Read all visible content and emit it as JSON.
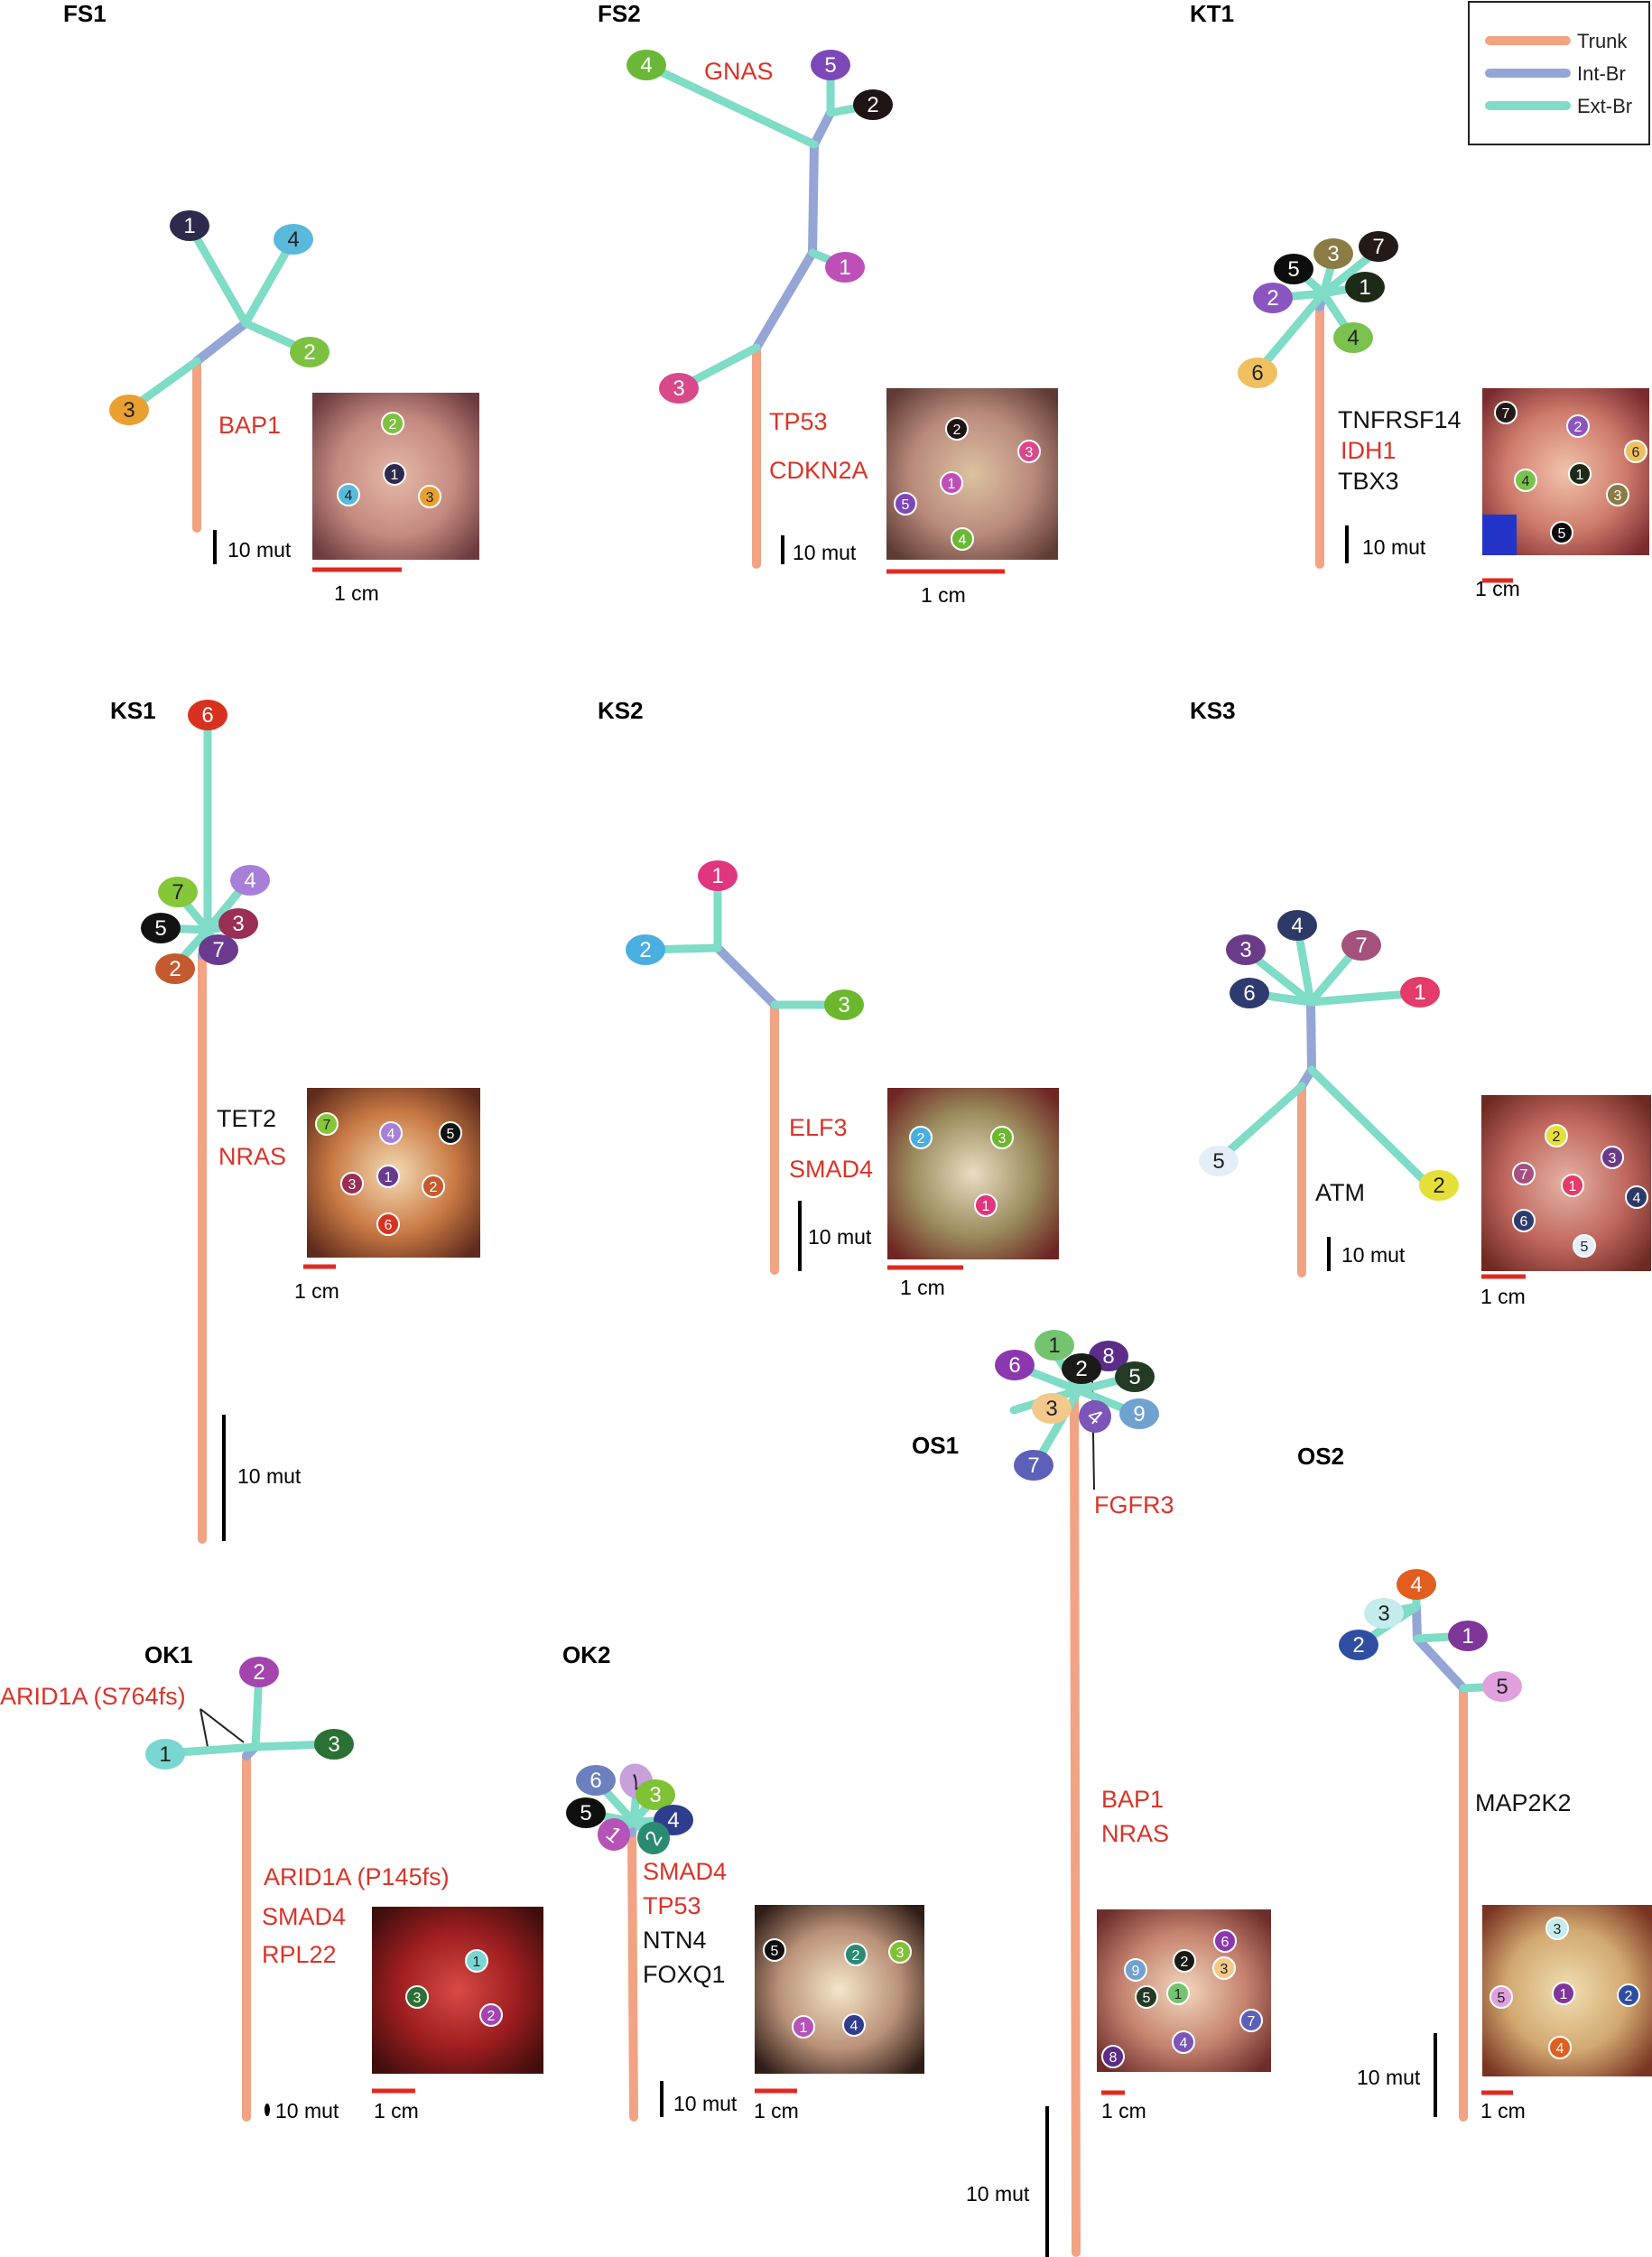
{
  "colors": {
    "trunk": "#f2a383",
    "int_br": "#94a5d6",
    "ext_br": "#7fdcc6",
    "driver": "#d93429",
    "other": "#111111",
    "scale_mut": "#000000",
    "scale_cm": "#e02a20"
  },
  "legend": {
    "entries": [
      {
        "label": "Trunk",
        "color": "#f2a383"
      },
      {
        "label": "Int-Br",
        "color": "#94a5d6"
      },
      {
        "label": "Ext-Br",
        "color": "#7fdcc6"
      }
    ]
  },
  "trees": [
    {
      "id": "FS1",
      "title": "FS1",
      "genes": [
        {
          "text": "BAP1",
          "driver": true
        }
      ],
      "scale_mut": "10 mut",
      "scale_cm": "1 cm",
      "tumor_colors": [
        "#e6b9a8",
        "#c48a80",
        "#6b3b3f"
      ],
      "nodes": [
        {
          "label": "1",
          "color": "#2e2a4d"
        },
        {
          "label": "2",
          "color": "#7dc140"
        },
        {
          "label": "3",
          "color": "#e9a030"
        },
        {
          "label": "4",
          "color": "#58b9db"
        }
      ]
    },
    {
      "id": "FS2",
      "title": "FS2",
      "genes": [
        {
          "text": "GNAS",
          "driver": true
        },
        {
          "text": "TP53",
          "driver": true
        },
        {
          "text": "CDKN2A",
          "driver": true
        }
      ],
      "scale_mut": "10 mut",
      "scale_cm": "1 cm",
      "tumor_colors": [
        "#dcc2a0",
        "#b98a7c",
        "#5e3b34"
      ],
      "nodes": [
        {
          "label": "1",
          "color": "#be4fb8"
        },
        {
          "label": "2",
          "color": "#1f1514"
        },
        {
          "label": "3",
          "color": "#d9488a"
        },
        {
          "label": "4",
          "color": "#6ab838"
        },
        {
          "label": "5",
          "color": "#7c48b8"
        }
      ]
    },
    {
      "id": "KT1",
      "title": "KT1",
      "genes": [
        {
          "text": "TNFRSF14",
          "driver": false
        },
        {
          "text": "IDH1",
          "driver": true
        },
        {
          "text": "TBX3",
          "driver": false
        }
      ],
      "scale_mut": "10 mut",
      "scale_cm": "1 cm",
      "tumor_colors": [
        "#f2c3ac",
        "#cf7b6c",
        "#7a2b2e"
      ],
      "nodes": [
        {
          "label": "1",
          "color": "#1e2a18"
        },
        {
          "label": "2",
          "color": "#8a55c0"
        },
        {
          "label": "3",
          "color": "#8b7b44"
        },
        {
          "label": "4",
          "color": "#7ac14e"
        },
        {
          "label": "5",
          "color": "#0d0d0d"
        },
        {
          "label": "6",
          "color": "#f0c060"
        },
        {
          "label": "7",
          "color": "#231a17"
        }
      ]
    },
    {
      "id": "KS1",
      "title": "KS1",
      "genes": [
        {
          "text": "TET2",
          "driver": false
        },
        {
          "text": "NRAS",
          "driver": true
        }
      ],
      "scale_mut": "10 mut",
      "scale_cm": "1 cm",
      "tumor_colors": [
        "#f4dcb6",
        "#c97a44",
        "#5e2a1c"
      ],
      "nodes": [
        {
          "label": "1",
          "color": "#6a3a8f"
        },
        {
          "label": "2",
          "color": "#c45a2e"
        },
        {
          "label": "3",
          "color": "#9a2e55"
        },
        {
          "label": "4",
          "color": "#a77fd8"
        },
        {
          "label": "5",
          "color": "#121212"
        },
        {
          "label": "6",
          "color": "#d9311f"
        },
        {
          "label": "7",
          "color": "#86c73a"
        }
      ]
    },
    {
      "id": "KS2",
      "title": "KS2",
      "genes": [
        {
          "text": "ELF3",
          "driver": true
        },
        {
          "text": "SMAD4",
          "driver": true
        }
      ],
      "scale_mut": "10 mut",
      "scale_cm": "1 cm",
      "tumor_colors": [
        "#e9ddc2",
        "#9b8d5e",
        "#6e2523"
      ],
      "nodes": [
        {
          "label": "1",
          "color": "#e0357f"
        },
        {
          "label": "2",
          "color": "#49aee0"
        },
        {
          "label": "3",
          "color": "#6bb82d"
        }
      ]
    },
    {
      "id": "KS3",
      "title": "KS3",
      "genes": [
        {
          "text": "ATM",
          "driver": false
        }
      ],
      "scale_mut": "10 mut",
      "scale_cm": "1 cm",
      "tumor_colors": [
        "#e6b3a3",
        "#c0675e",
        "#6d2a22"
      ],
      "nodes": [
        {
          "label": "1",
          "color": "#e43c6a"
        },
        {
          "label": "2",
          "color": "#e5df3a"
        },
        {
          "label": "3",
          "color": "#6b3b8a"
        },
        {
          "label": "4",
          "color": "#2d3a68"
        },
        {
          "label": "5",
          "color": "#e4eef7"
        },
        {
          "label": "6",
          "color": "#2e3b6e"
        },
        {
          "label": "7",
          "color": "#a4517c"
        }
      ]
    },
    {
      "id": "OS1",
      "title": "OS1",
      "genes": [
        {
          "text": "FGFR3",
          "driver": true
        },
        {
          "text": "BAP1",
          "driver": true
        },
        {
          "text": "NRAS",
          "driver": true
        }
      ],
      "scale_mut": "10 mut",
      "scale_cm": "1 cm",
      "tumor_colors": [
        "#f2d8bd",
        "#c5826f",
        "#6d2d2a"
      ],
      "nodes": [
        {
          "label": "1",
          "color": "#74c46f"
        },
        {
          "label": "2",
          "color": "#1a1a16"
        },
        {
          "label": "3",
          "color": "#f2c98a"
        },
        {
          "label": "4",
          "color": "#7b55b7"
        },
        {
          "label": "5",
          "color": "#233b24"
        },
        {
          "label": "6",
          "color": "#8b38b0"
        },
        {
          "label": "7",
          "color": "#5c60b8"
        },
        {
          "label": "8",
          "color": "#5b2d88"
        },
        {
          "label": "9",
          "color": "#6fa2cf"
        }
      ]
    },
    {
      "id": "OS2",
      "title": "OS2",
      "genes": [
        {
          "text": "MAP2K2",
          "driver": false
        }
      ],
      "scale_mut": "10 mut",
      "scale_cm": "1 cm",
      "tumor_colors": [
        "#f0dfb2",
        "#d2a870",
        "#7a3422"
      ],
      "nodes": [
        {
          "label": "1",
          "color": "#7e3699"
        },
        {
          "label": "2",
          "color": "#2f4ea2"
        },
        {
          "label": "3",
          "color": "#c4ecec"
        },
        {
          "label": "4",
          "color": "#e25e1e"
        },
        {
          "label": "5",
          "color": "#e0a0dd"
        }
      ]
    },
    {
      "id": "OK1",
      "title": "OK1",
      "genes": [
        {
          "text": "ARID1A (S764fs)",
          "driver": true
        },
        {
          "text": "ARID1A (P145fs)",
          "driver": true
        },
        {
          "text": "SMAD4",
          "driver": true
        },
        {
          "text": "RPL22",
          "driver": true
        }
      ],
      "scale_mut": "10 mut",
      "scale_cm": "1 cm",
      "tumor_colors": [
        "#d84a44",
        "#9c1d1f",
        "#3e0e0c"
      ],
      "nodes": [
        {
          "label": "1",
          "color": "#7ad6d0"
        },
        {
          "label": "2",
          "color": "#a445ad"
        },
        {
          "label": "3",
          "color": "#2b7034"
        }
      ]
    },
    {
      "id": "OK2",
      "title": "OK2",
      "genes": [
        {
          "text": "SMAD4",
          "driver": true
        },
        {
          "text": "TP53",
          "driver": true
        },
        {
          "text": "NTN4",
          "driver": false
        },
        {
          "text": "FOXQ1",
          "driver": false
        }
      ],
      "scale_mut": "10 mut",
      "scale_cm": "1 cm",
      "tumor_colors": [
        "#f5e6c8",
        "#b99178",
        "#2e1c16"
      ],
      "nodes": [
        {
          "label": "1",
          "color": "#b553b8"
        },
        {
          "label": "2",
          "color": "#2a8a72"
        },
        {
          "label": "3",
          "color": "#7fc235"
        },
        {
          "label": "4",
          "color": "#2f3d8e"
        },
        {
          "label": "5",
          "color": "#0f0f0f"
        },
        {
          "label": "6",
          "color": "#6c7fbf"
        },
        {
          "label": "7",
          "color": "#c7a0dc"
        }
      ]
    }
  ]
}
